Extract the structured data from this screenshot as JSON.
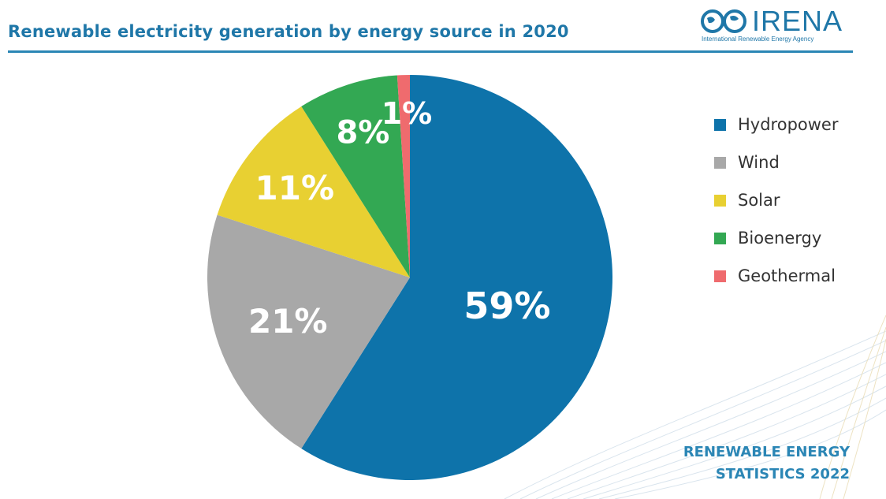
{
  "header": {
    "title": "Renewable electricity generation by energy source in 2020",
    "logo_name": "IRENA",
    "logo_subtitle": "International Renewable Energy Agency"
  },
  "footer": {
    "line1": "RENEWABLE ENERGY",
    "line2": "STATISTICS 2022"
  },
  "chart_data": {
    "type": "pie",
    "title": "Renewable electricity generation by energy source in 2020",
    "unit": "%",
    "slices": [
      {
        "label": "Hydropower",
        "value": 59,
        "display": "59%",
        "color": "#0e73aa"
      },
      {
        "label": "Wind",
        "value": 21,
        "display": "21%",
        "color": "#a8a8a8"
      },
      {
        "label": "Solar",
        "value": 11,
        "display": "11%",
        "color": "#e8d032"
      },
      {
        "label": "Bioenergy",
        "value": 8,
        "display": "8%",
        "color": "#33a853"
      },
      {
        "label": "Geothermal",
        "value": 1,
        "display": "1%",
        "color": "#ef6b6e"
      }
    ],
    "legend_position": "right"
  }
}
